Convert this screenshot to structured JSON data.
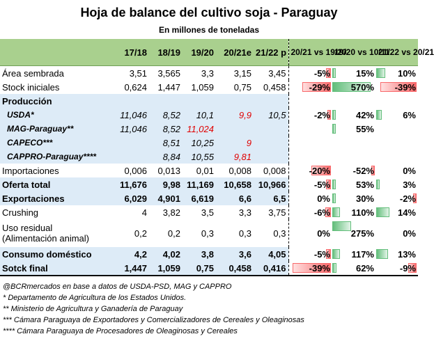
{
  "title": "Hoja de balance del cultivo soja - Paraguay",
  "subtitle": "En millones de toneladas",
  "columns": [
    "17/18",
    "18/19",
    "19/20",
    "20/21e",
    "21/22 p"
  ],
  "var_columns": [
    "20/21 vs 19/20",
    "19/20 vs 10/11",
    "21/22 vs 20/21"
  ],
  "rows": [
    {
      "label": "Área sembrada",
      "values": [
        "3,51",
        "3,565",
        "3,3",
        "3,15",
        "3,45"
      ],
      "vars": [
        "-5%",
        "15%",
        "10%"
      ]
    },
    {
      "label": "Stock iniciales",
      "values": [
        "0,624",
        "1,447",
        "1,059",
        "0,75",
        "0,458"
      ],
      "vars": [
        "-29%",
        "570%",
        "-39%"
      ]
    },
    {
      "label": "Producción",
      "values": [
        "",
        "",
        "",
        "",
        ""
      ],
      "vars": [
        "",
        "",
        ""
      ]
    },
    {
      "label": "USDA*",
      "values": [
        "11,046",
        "8,52",
        "10,1",
        "9,9",
        "10,5"
      ],
      "vars": [
        "-2%",
        "42%",
        "6%"
      ]
    },
    {
      "label": "MAG-Paraguay**",
      "values": [
        "11,046",
        "8,52",
        "11,024",
        "",
        ""
      ],
      "vars": [
        "",
        "55%",
        ""
      ]
    },
    {
      "label": "CAPECO***",
      "values": [
        "",
        "8,51",
        "10,25",
        "9",
        ""
      ],
      "vars": [
        "",
        "",
        ""
      ]
    },
    {
      "label": "CAPPRO-Paraguay****",
      "values": [
        "",
        "8,84",
        "10,55",
        "9,81",
        ""
      ],
      "vars": [
        "",
        "",
        ""
      ]
    },
    {
      "label": "Importaciones",
      "values": [
        "0,006",
        "0,013",
        "0,01",
        "0,008",
        "0,008"
      ],
      "vars": [
        "-20%",
        "-52%",
        "0%"
      ]
    },
    {
      "label": "Oferta total",
      "values": [
        "11,676",
        "9,98",
        "11,169",
        "10,658",
        "10,966"
      ],
      "vars": [
        "-5%",
        "53%",
        "3%"
      ]
    },
    {
      "label": "Exportaciones",
      "values": [
        "6,029",
        "4,901",
        "6,619",
        "6,6",
        "6,5"
      ],
      "vars": [
        "0%",
        "30%",
        "-2%"
      ]
    },
    {
      "label": "Crushing",
      "values": [
        "4",
        "3,82",
        "3,5",
        "3,3",
        "3,75"
      ],
      "vars": [
        "-6%",
        "110%",
        "14%"
      ]
    },
    {
      "label": "Uso residual",
      "label2": "(Alimentación animal)",
      "values": [
        "0,2",
        "0,2",
        "0,3",
        "0,3",
        "0,3"
      ],
      "vars": [
        "0%",
        "275%",
        "0%"
      ]
    },
    {
      "label": "Consumo doméstico",
      "values": [
        "4,2",
        "4,02",
        "3,8",
        "3,6",
        "4,05"
      ],
      "vars": [
        "-5%",
        "117%",
        "13%"
      ]
    },
    {
      "label": "Sotck final",
      "values": [
        "1,447",
        "1,059",
        "0,75",
        "0,458",
        "0,416"
      ],
      "vars": [
        "-39%",
        "62%",
        "-9%"
      ]
    }
  ],
  "notes": [
    "@BCRmercados en base a datos de USDA-PSD, MAG y CAPPRO",
    "* Departamento de Agricultura de los Estados Unidos.",
    "** Ministerio de Agricultura y Ganadería de Paraguay",
    "*** Cámara Paraguaya de Exportadores y Comercializadores de Cereales y Oleaginosas",
    "**** Cámara Paraguaya de Procesadores de Oleaginosas y Cereales"
  ],
  "colors": {
    "header_bg": "#a9d08e",
    "blue_bg": "#ddebf7",
    "pos_bar": "#63be7b",
    "neg_bar": "#f8696b",
    "red_text": "#e00000"
  }
}
